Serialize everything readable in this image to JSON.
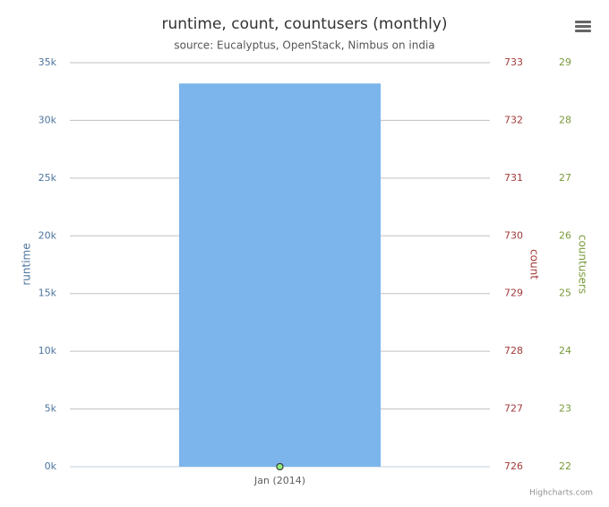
{
  "chart_data": {
    "type": "bar",
    "title": "runtime, count, countusers (monthly)",
    "subtitle": "source: Eucalyptus, OpenStack, Nimbus on india",
    "categories": [
      "Jan (2014)"
    ],
    "series": [
      {
        "name": "runtime",
        "type": "bar",
        "color": "#7cb5ec",
        "values": [
          33200
        ]
      },
      {
        "name": "count",
        "type": "line",
        "axis": "y2",
        "color": "#a23b3b",
        "values": [
          726
        ]
      },
      {
        "name": "countusers",
        "type": "line",
        "axis": "y3",
        "color": "#7a9a3a",
        "marker_color": "#90ed7d",
        "values": [
          22
        ]
      }
    ],
    "ylim": [
      0,
      35000
    ],
    "yticks": [
      {
        "value": 0,
        "label": "0k"
      },
      {
        "value": 5000,
        "label": "5k"
      },
      {
        "value": 10000,
        "label": "10k"
      },
      {
        "value": 15000,
        "label": "15k"
      },
      {
        "value": 20000,
        "label": "20k"
      },
      {
        "value": 25000,
        "label": "25k"
      },
      {
        "value": 30000,
        "label": "30k"
      },
      {
        "value": 35000,
        "label": "35k"
      }
    ],
    "y2lim": [
      726,
      733
    ],
    "y2ticks": [
      726,
      727,
      728,
      729,
      730,
      731,
      732,
      733
    ],
    "y3lim": [
      22,
      29
    ],
    "y3ticks": [
      22,
      23,
      24,
      25,
      26,
      27,
      28,
      29
    ],
    "grid": true,
    "credits": "Highcharts.com"
  }
}
